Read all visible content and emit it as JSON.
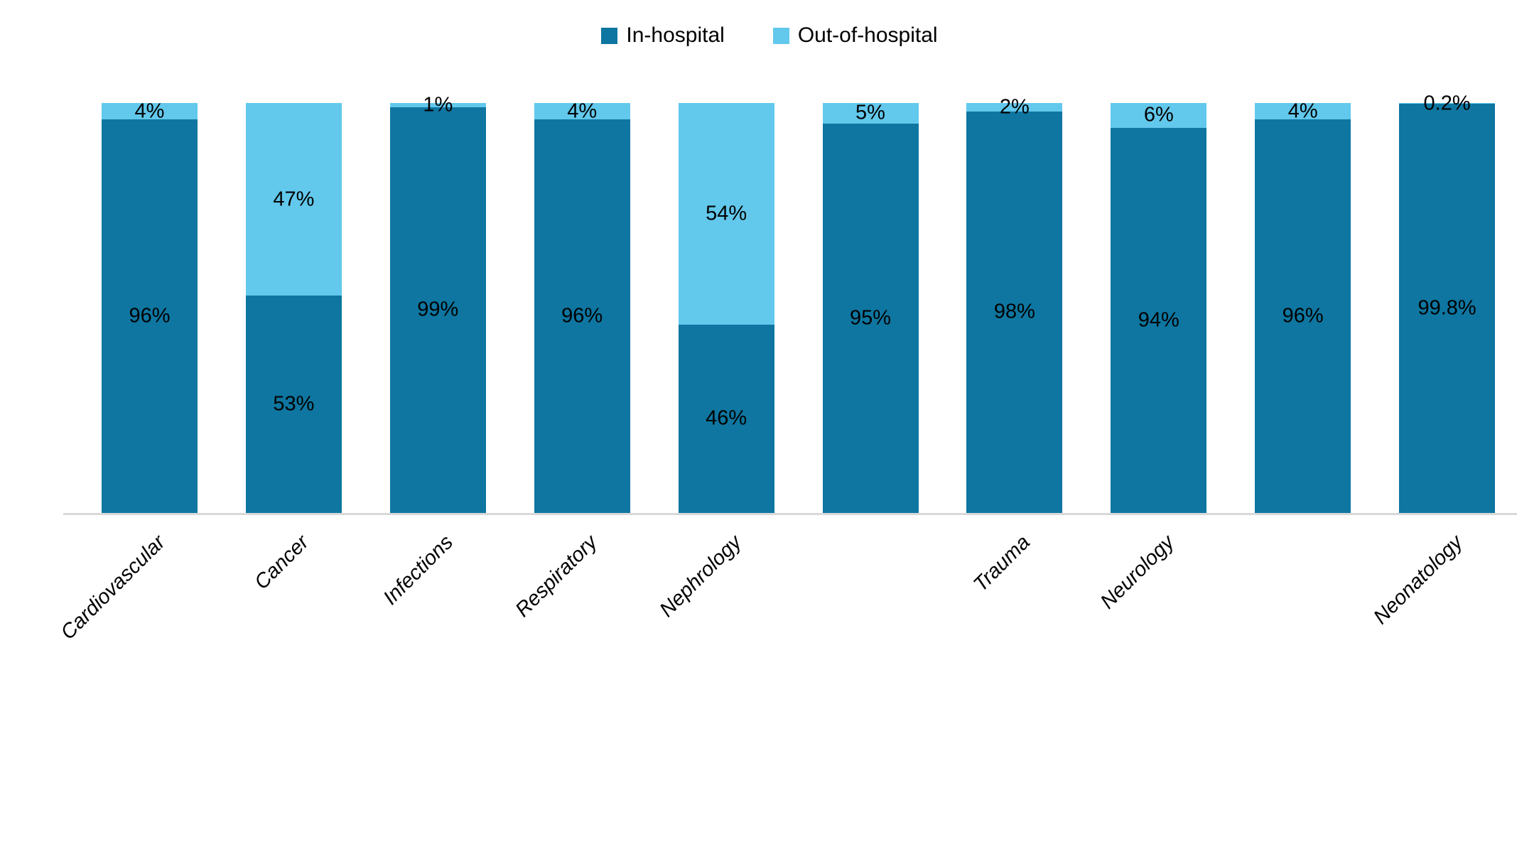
{
  "chart_data": {
    "type": "bar",
    "stacked": true,
    "stacked_mode": "percent",
    "title": "",
    "xlabel": "",
    "ylabel": "",
    "ylim": [
      0,
      100
    ],
    "grid": false,
    "legend_position": "top-center",
    "background_color": "#ffffff",
    "axis_line_color": "#d9d9d9",
    "label_color": "#000000",
    "categories": [
      "Cardiovascular",
      "Cancer",
      "Infections",
      "Respiratory",
      "Nephrology",
      "",
      "Trauma",
      "Neurology",
      "",
      "Neonatology"
    ],
    "series": [
      {
        "name": "In-hospital",
        "color": "#0e76a0",
        "values": [
          96,
          53,
          99,
          96,
          46,
          95,
          98,
          94,
          96,
          99.8
        ],
        "labels": [
          "96%",
          "53%",
          "99%",
          "96%",
          "46%",
          "95%",
          "98%",
          "94%",
          "96%",
          "99.8%"
        ]
      },
      {
        "name": "Out-of-hospital",
        "color": "#62c8ec",
        "values": [
          4,
          47,
          1,
          4,
          54,
          5,
          2,
          6,
          4,
          0.2
        ],
        "labels": [
          "4%",
          "47%",
          "1%",
          "4%",
          "54%",
          "5%",
          "2%",
          "6%",
          "4%",
          "0.2%"
        ]
      }
    ]
  }
}
